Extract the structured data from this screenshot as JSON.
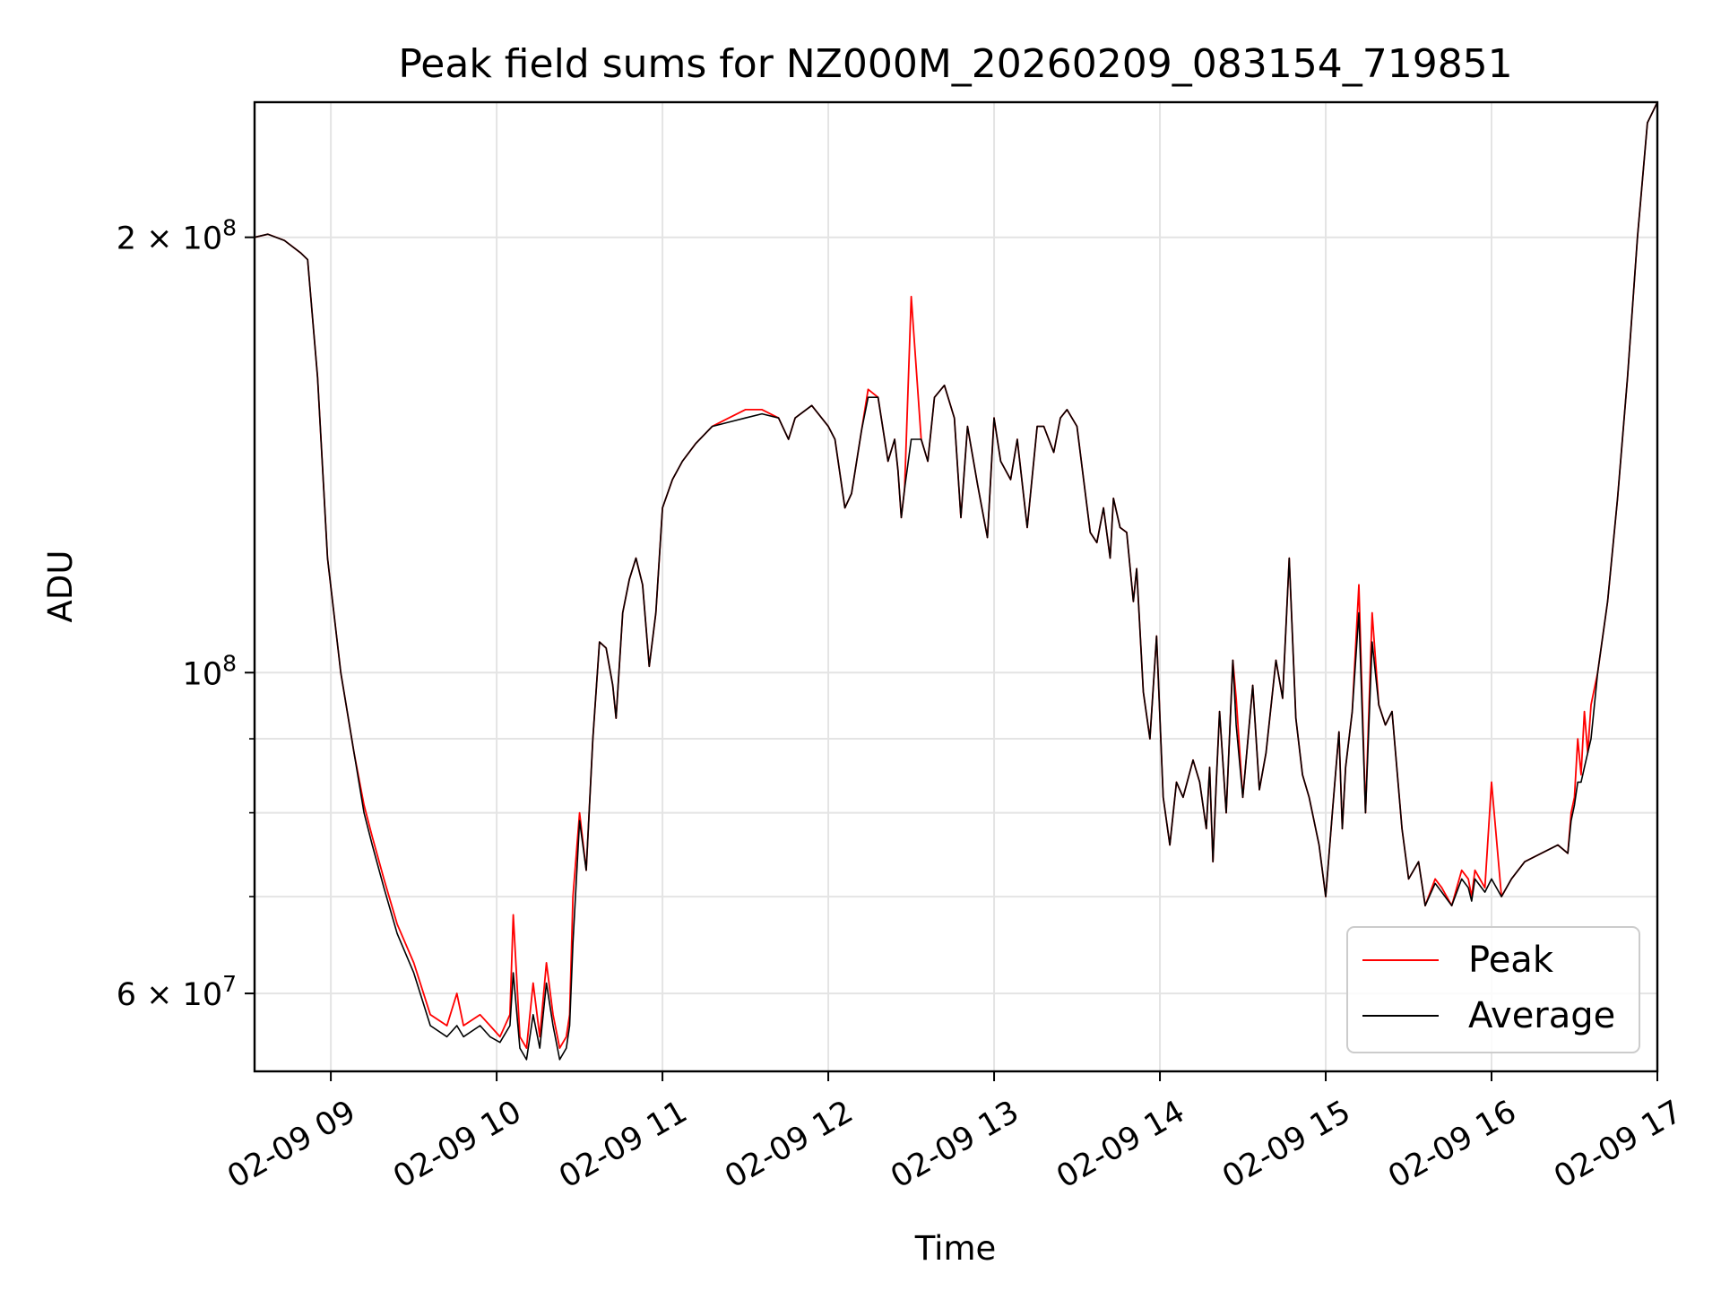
{
  "chart_data": {
    "type": "line",
    "title": "Peak field sums for NZ000M_20260209_083154_719851",
    "xlabel": "Time",
    "ylabel": "ADU",
    "x_unit": "hour of 2026-02-09 (decimal)",
    "xlim": [
      8.54,
      17.0
    ],
    "ylim": [
      53000000,
      248000000
    ],
    "yscale": "log",
    "grid": true,
    "legend_position": "lower-right",
    "x_ticks": [
      {
        "value": 9,
        "label": "02-09 09"
      },
      {
        "value": 10,
        "label": "02-09 10"
      },
      {
        "value": 11,
        "label": "02-09 11"
      },
      {
        "value": 12,
        "label": "02-09 12"
      },
      {
        "value": 13,
        "label": "02-09 13"
      },
      {
        "value": 14,
        "label": "02-09 14"
      },
      {
        "value": 15,
        "label": "02-09 15"
      },
      {
        "value": 16,
        "label": "02-09 16"
      },
      {
        "value": 17,
        "label": "02-09 17"
      }
    ],
    "y_ticks_major": [
      {
        "value": 60000000,
        "mant": "6",
        "exp": "7"
      },
      {
        "value": 100000000,
        "mant": "",
        "exp": "8"
      },
      {
        "value": 200000000,
        "mant": "2",
        "exp": "8"
      }
    ],
    "y_ticks_minor": [
      70000000,
      80000000,
      90000000
    ],
    "series": [
      {
        "name": "Peak",
        "color": "#ff0000",
        "x": [
          8.54,
          8.62,
          8.72,
          8.82,
          8.86,
          8.92,
          8.98,
          9.06,
          9.14,
          9.2,
          9.25,
          9.32,
          9.4,
          9.5,
          9.6,
          9.7,
          9.76,
          9.8,
          9.9,
          9.96,
          10.02,
          10.08,
          10.1,
          10.14,
          10.18,
          10.22,
          10.26,
          10.3,
          10.34,
          10.38,
          10.42,
          10.44,
          10.46,
          10.5,
          10.54,
          10.58,
          10.62,
          10.66,
          10.7,
          10.72,
          10.76,
          10.8,
          10.84,
          10.88,
          10.92,
          10.96,
          11.0,
          11.06,
          11.12,
          11.2,
          11.3,
          11.4,
          11.5,
          11.6,
          11.7,
          11.76,
          11.8,
          11.9,
          12.0,
          12.04,
          12.1,
          12.14,
          12.2,
          12.24,
          12.3,
          12.36,
          12.4,
          12.42,
          12.44,
          12.46,
          12.5,
          12.56,
          12.6,
          12.64,
          12.7,
          12.76,
          12.8,
          12.84,
          12.9,
          12.96,
          13.0,
          13.04,
          13.1,
          13.14,
          13.2,
          13.26,
          13.3,
          13.36,
          13.4,
          13.44,
          13.5,
          13.54,
          13.58,
          13.62,
          13.66,
          13.7,
          13.72,
          13.76,
          13.8,
          13.84,
          13.86,
          13.9,
          13.94,
          13.98,
          14.02,
          14.06,
          14.1,
          14.14,
          14.2,
          14.24,
          14.28,
          14.3,
          14.32,
          14.34,
          14.36,
          14.4,
          14.44,
          14.46,
          14.5,
          14.56,
          14.6,
          14.64,
          14.7,
          14.74,
          14.78,
          14.82,
          14.86,
          14.9,
          14.96,
          15.0,
          15.04,
          15.08,
          15.1,
          15.12,
          15.16,
          15.2,
          15.24,
          15.28,
          15.32,
          15.36,
          15.4,
          15.46,
          15.5,
          15.56,
          15.6,
          15.66,
          15.7,
          15.76,
          15.82,
          15.86,
          15.88,
          15.9,
          15.96,
          16.0,
          16.06,
          16.12,
          16.2,
          16.3,
          16.4,
          16.46,
          16.48,
          16.5,
          16.52,
          16.54,
          16.56,
          16.58,
          16.6,
          16.64,
          16.7,
          16.76,
          16.82,
          16.88,
          16.94,
          17.0
        ],
        "values": [
          200000000,
          201000000,
          199000000,
          195000000,
          193000000,
          160000000,
          120000000,
          100000000,
          88000000,
          81000000,
          77000000,
          72000000,
          67000000,
          63000000,
          58000000,
          57000000,
          60000000,
          57000000,
          58000000,
          57000000,
          56000000,
          58000000,
          68000000,
          56000000,
          55000000,
          61000000,
          56000000,
          63000000,
          58000000,
          55000000,
          56000000,
          58000000,
          70000000,
          80000000,
          73000000,
          90000000,
          105000000,
          104000000,
          98000000,
          93000000,
          110000000,
          116000000,
          120000000,
          115000000,
          101000000,
          110000000,
          130000000,
          136000000,
          140000000,
          144000000,
          148000000,
          150000000,
          152000000,
          152000000,
          150000000,
          145000000,
          150000000,
          153000000,
          148000000,
          145000000,
          130000000,
          133000000,
          147000000,
          157000000,
          155000000,
          140000000,
          145000000,
          138000000,
          128000000,
          134000000,
          182000000,
          145000000,
          140000000,
          155000000,
          158000000,
          150000000,
          128000000,
          148000000,
          135000000,
          124000000,
          150000000,
          140000000,
          136000000,
          145000000,
          126000000,
          148000000,
          148000000,
          142000000,
          150000000,
          152000000,
          148000000,
          136000000,
          125000000,
          123000000,
          130000000,
          120000000,
          132000000,
          126000000,
          125000000,
          112000000,
          118000000,
          97000000,
          90000000,
          106000000,
          82000000,
          76000000,
          84000000,
          82000000,
          87000000,
          84000000,
          78000000,
          86000000,
          74000000,
          84000000,
          94000000,
          80000000,
          102000000,
          96000000,
          82000000,
          98000000,
          83000000,
          88000000,
          102000000,
          96000000,
          120000000,
          93000000,
          85000000,
          82000000,
          76000000,
          70000000,
          80000000,
          91000000,
          78000000,
          86000000,
          94000000,
          115000000,
          80000000,
          110000000,
          95000000,
          92000000,
          94000000,
          78000000,
          72000000,
          74000000,
          69000000,
          72000000,
          71000000,
          69000000,
          73000000,
          72000000,
          70000000,
          73000000,
          71000000,
          84000000,
          70000000,
          72000000,
          74000000,
          75000000,
          76000000,
          75000000,
          80000000,
          82000000,
          90000000,
          85000000,
          94000000,
          88000000,
          95000000,
          100000000,
          112000000,
          132000000,
          160000000,
          200000000,
          240000000,
          248000000
        ]
      },
      {
        "name": "Average",
        "color": "#000000",
        "x": [
          8.54,
          8.62,
          8.72,
          8.82,
          8.86,
          8.92,
          8.98,
          9.06,
          9.14,
          9.2,
          9.25,
          9.32,
          9.4,
          9.5,
          9.6,
          9.7,
          9.76,
          9.8,
          9.9,
          9.96,
          10.02,
          10.08,
          10.1,
          10.14,
          10.18,
          10.22,
          10.26,
          10.3,
          10.34,
          10.38,
          10.42,
          10.44,
          10.46,
          10.5,
          10.54,
          10.58,
          10.62,
          10.66,
          10.7,
          10.72,
          10.76,
          10.8,
          10.84,
          10.88,
          10.92,
          10.96,
          11.0,
          11.06,
          11.12,
          11.2,
          11.3,
          11.4,
          11.5,
          11.6,
          11.7,
          11.76,
          11.8,
          11.9,
          12.0,
          12.04,
          12.1,
          12.14,
          12.2,
          12.24,
          12.3,
          12.36,
          12.4,
          12.42,
          12.44,
          12.46,
          12.5,
          12.56,
          12.6,
          12.64,
          12.7,
          12.76,
          12.8,
          12.84,
          12.9,
          12.96,
          13.0,
          13.04,
          13.1,
          13.14,
          13.2,
          13.26,
          13.3,
          13.36,
          13.4,
          13.44,
          13.5,
          13.54,
          13.58,
          13.62,
          13.66,
          13.7,
          13.72,
          13.76,
          13.8,
          13.84,
          13.86,
          13.9,
          13.94,
          13.98,
          14.02,
          14.06,
          14.1,
          14.14,
          14.2,
          14.24,
          14.28,
          14.3,
          14.32,
          14.34,
          14.36,
          14.4,
          14.44,
          14.46,
          14.5,
          14.56,
          14.6,
          14.64,
          14.7,
          14.74,
          14.78,
          14.82,
          14.86,
          14.9,
          14.96,
          15.0,
          15.04,
          15.08,
          15.1,
          15.12,
          15.16,
          15.2,
          15.24,
          15.28,
          15.32,
          15.36,
          15.4,
          15.46,
          15.5,
          15.56,
          15.6,
          15.66,
          15.7,
          15.76,
          15.82,
          15.86,
          15.88,
          15.9,
          15.96,
          16.0,
          16.06,
          16.12,
          16.2,
          16.3,
          16.4,
          16.46,
          16.48,
          16.5,
          16.52,
          16.54,
          16.56,
          16.58,
          16.6,
          16.64,
          16.7,
          16.76,
          16.82,
          16.88,
          16.94,
          17.0
        ],
        "values": [
          200000000,
          201000000,
          199000000,
          195000000,
          193000000,
          160000000,
          120000000,
          100000000,
          88000000,
          80000000,
          76000000,
          71000000,
          66000000,
          62000000,
          57000000,
          56000000,
          57000000,
          56000000,
          57000000,
          56000000,
          55500000,
          57000000,
          62000000,
          55000000,
          54000000,
          58000000,
          55000000,
          61000000,
          57000000,
          54000000,
          55000000,
          57000000,
          65000000,
          79000000,
          73000000,
          90000000,
          105000000,
          104000000,
          98000000,
          93000000,
          110000000,
          116000000,
          120000000,
          115000000,
          101000000,
          110000000,
          130000000,
          136000000,
          140000000,
          144000000,
          148000000,
          149000000,
          150000000,
          151000000,
          150000000,
          145000000,
          150000000,
          153000000,
          148000000,
          145000000,
          130000000,
          133000000,
          147000000,
          155000000,
          155000000,
          140000000,
          145000000,
          138000000,
          128000000,
          134000000,
          145000000,
          145000000,
          140000000,
          155000000,
          158000000,
          150000000,
          128000000,
          148000000,
          135000000,
          124000000,
          150000000,
          140000000,
          136000000,
          145000000,
          126000000,
          148000000,
          148000000,
          142000000,
          150000000,
          152000000,
          148000000,
          136000000,
          125000000,
          123000000,
          130000000,
          120000000,
          132000000,
          126000000,
          125000000,
          112000000,
          118000000,
          97000000,
          90000000,
          106000000,
          82000000,
          76000000,
          84000000,
          82000000,
          87000000,
          84000000,
          78000000,
          86000000,
          74000000,
          84000000,
          94000000,
          80000000,
          102000000,
          92000000,
          82000000,
          98000000,
          83000000,
          88000000,
          102000000,
          96000000,
          120000000,
          93000000,
          85000000,
          82000000,
          76000000,
          70000000,
          80000000,
          91000000,
          78000000,
          86000000,
          94000000,
          110000000,
          80000000,
          105000000,
          95000000,
          92000000,
          94000000,
          78000000,
          72000000,
          74000000,
          69000000,
          71500000,
          70500000,
          69000000,
          72000000,
          71000000,
          69500000,
          72000000,
          70500000,
          72000000,
          70000000,
          72000000,
          74000000,
          75000000,
          76000000,
          75000000,
          79000000,
          81000000,
          84000000,
          84000000,
          86000000,
          88000000,
          90000000,
          100000000,
          112000000,
          132000000,
          160000000,
          200000000,
          240000000,
          248000000
        ]
      }
    ]
  }
}
